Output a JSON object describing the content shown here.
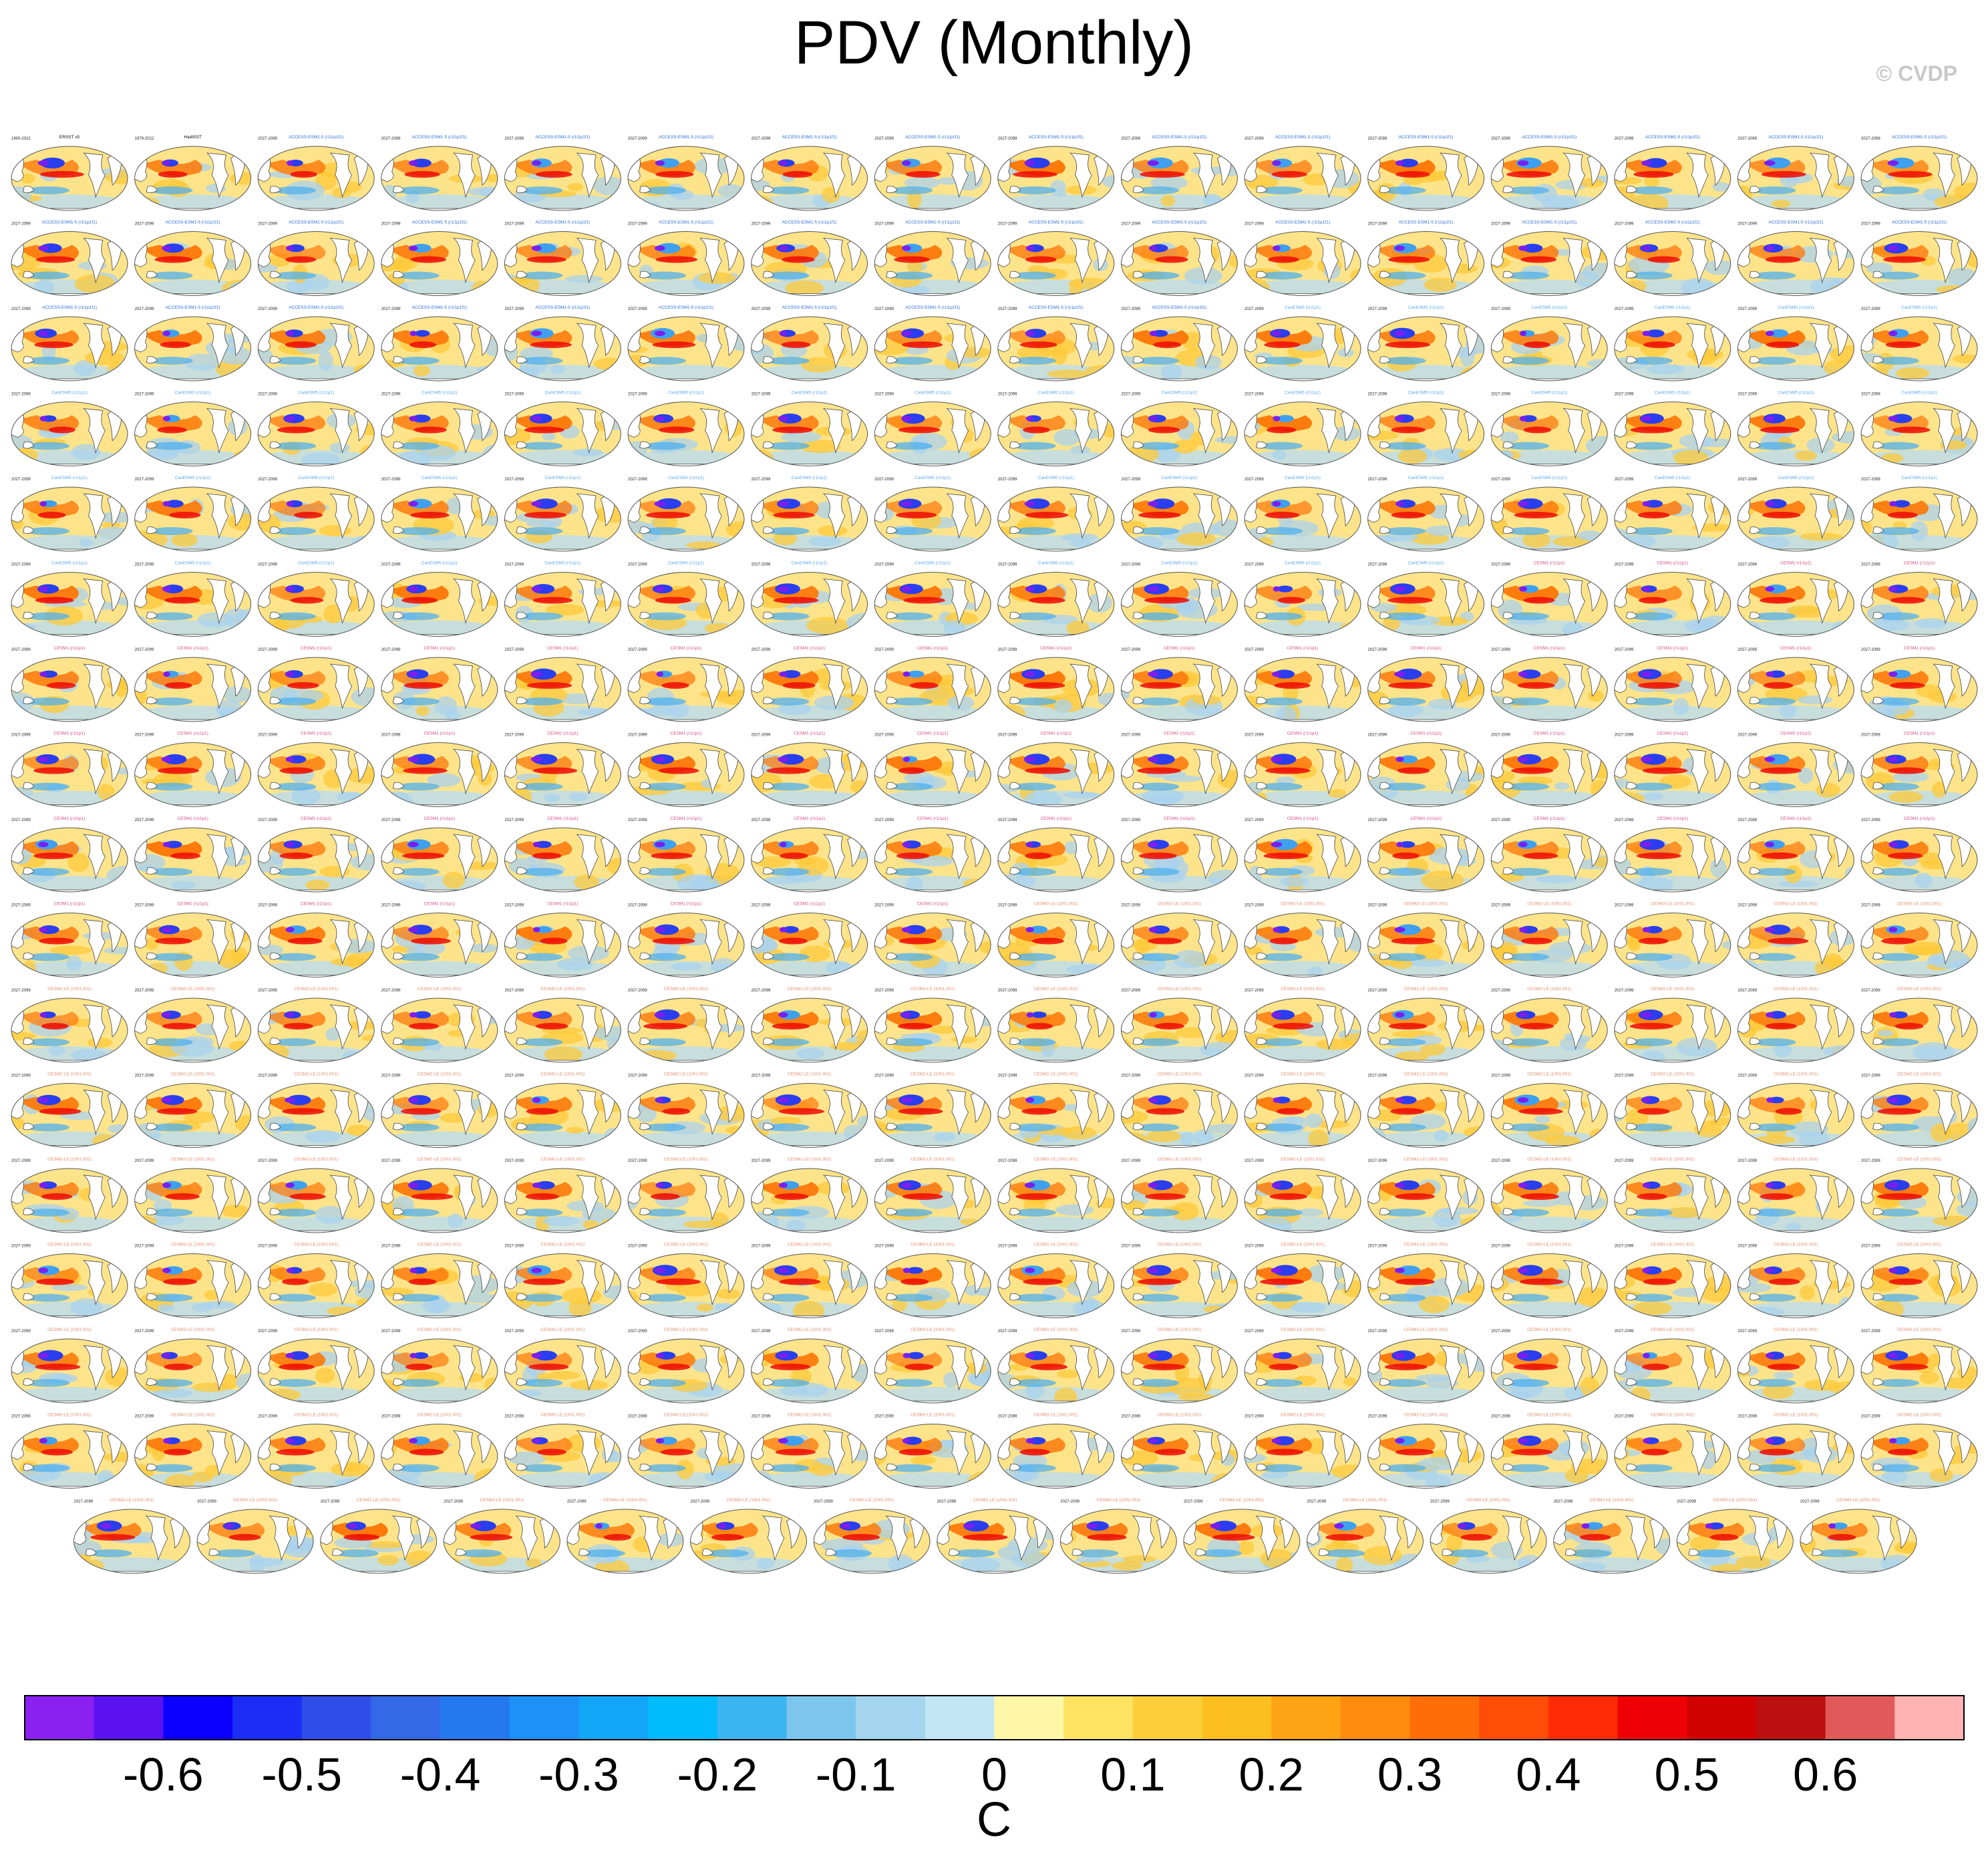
{
  "title": "PDV (Monthly)",
  "credit": "© CVDP",
  "chart_data": {
    "type": "heatmap",
    "description_kind": "grid of global SST regression maps (Hammer projection)",
    "panel_grid": {
      "rows": 17,
      "cols": 16,
      "last_row_panels": 15
    },
    "panels": {
      "header_left_examples": [
        "1900-2022",
        "1979-2022",
        "2027-2099"
      ],
      "header_title_examples": [
        "ERSST v5",
        "HadISST",
        "ACCESS-ESM1-5 (r1i1p1f1)",
        "CanESM5 (r1i1p1)",
        "CESM1 (r1i1p1)",
        "CESM2-LE (1001.001)"
      ]
    },
    "colorbar": {
      "unit": "C",
      "tick_labels": [
        "-0.6",
        "-0.5",
        "-0.4",
        "-0.3",
        "-0.2",
        "-0.1",
        "0",
        "0.1",
        "0.2",
        "0.3",
        "0.4",
        "0.5",
        "0.6"
      ],
      "colors": [
        "#8b21f0",
        "#5a12f0",
        "#0b00ff",
        "#1c2ef5",
        "#2f4ee8",
        "#3368e6",
        "#2479ee",
        "#1e90f8",
        "#13a6f7",
        "#00bcfd",
        "#3cb4f0",
        "#7cc6ee",
        "#a4d4ee",
        "#c2e5f4",
        "#fff6a8",
        "#fee262",
        "#fdcf3a",
        "#fdbf20",
        "#fda314",
        "#fd8b0d",
        "#fd6e08",
        "#fd4d07",
        "#fd2a06",
        "#ee0004",
        "#d20200",
        "#bc0f0f",
        "#e15a5a",
        "#ffb3b3"
      ]
    }
  }
}
